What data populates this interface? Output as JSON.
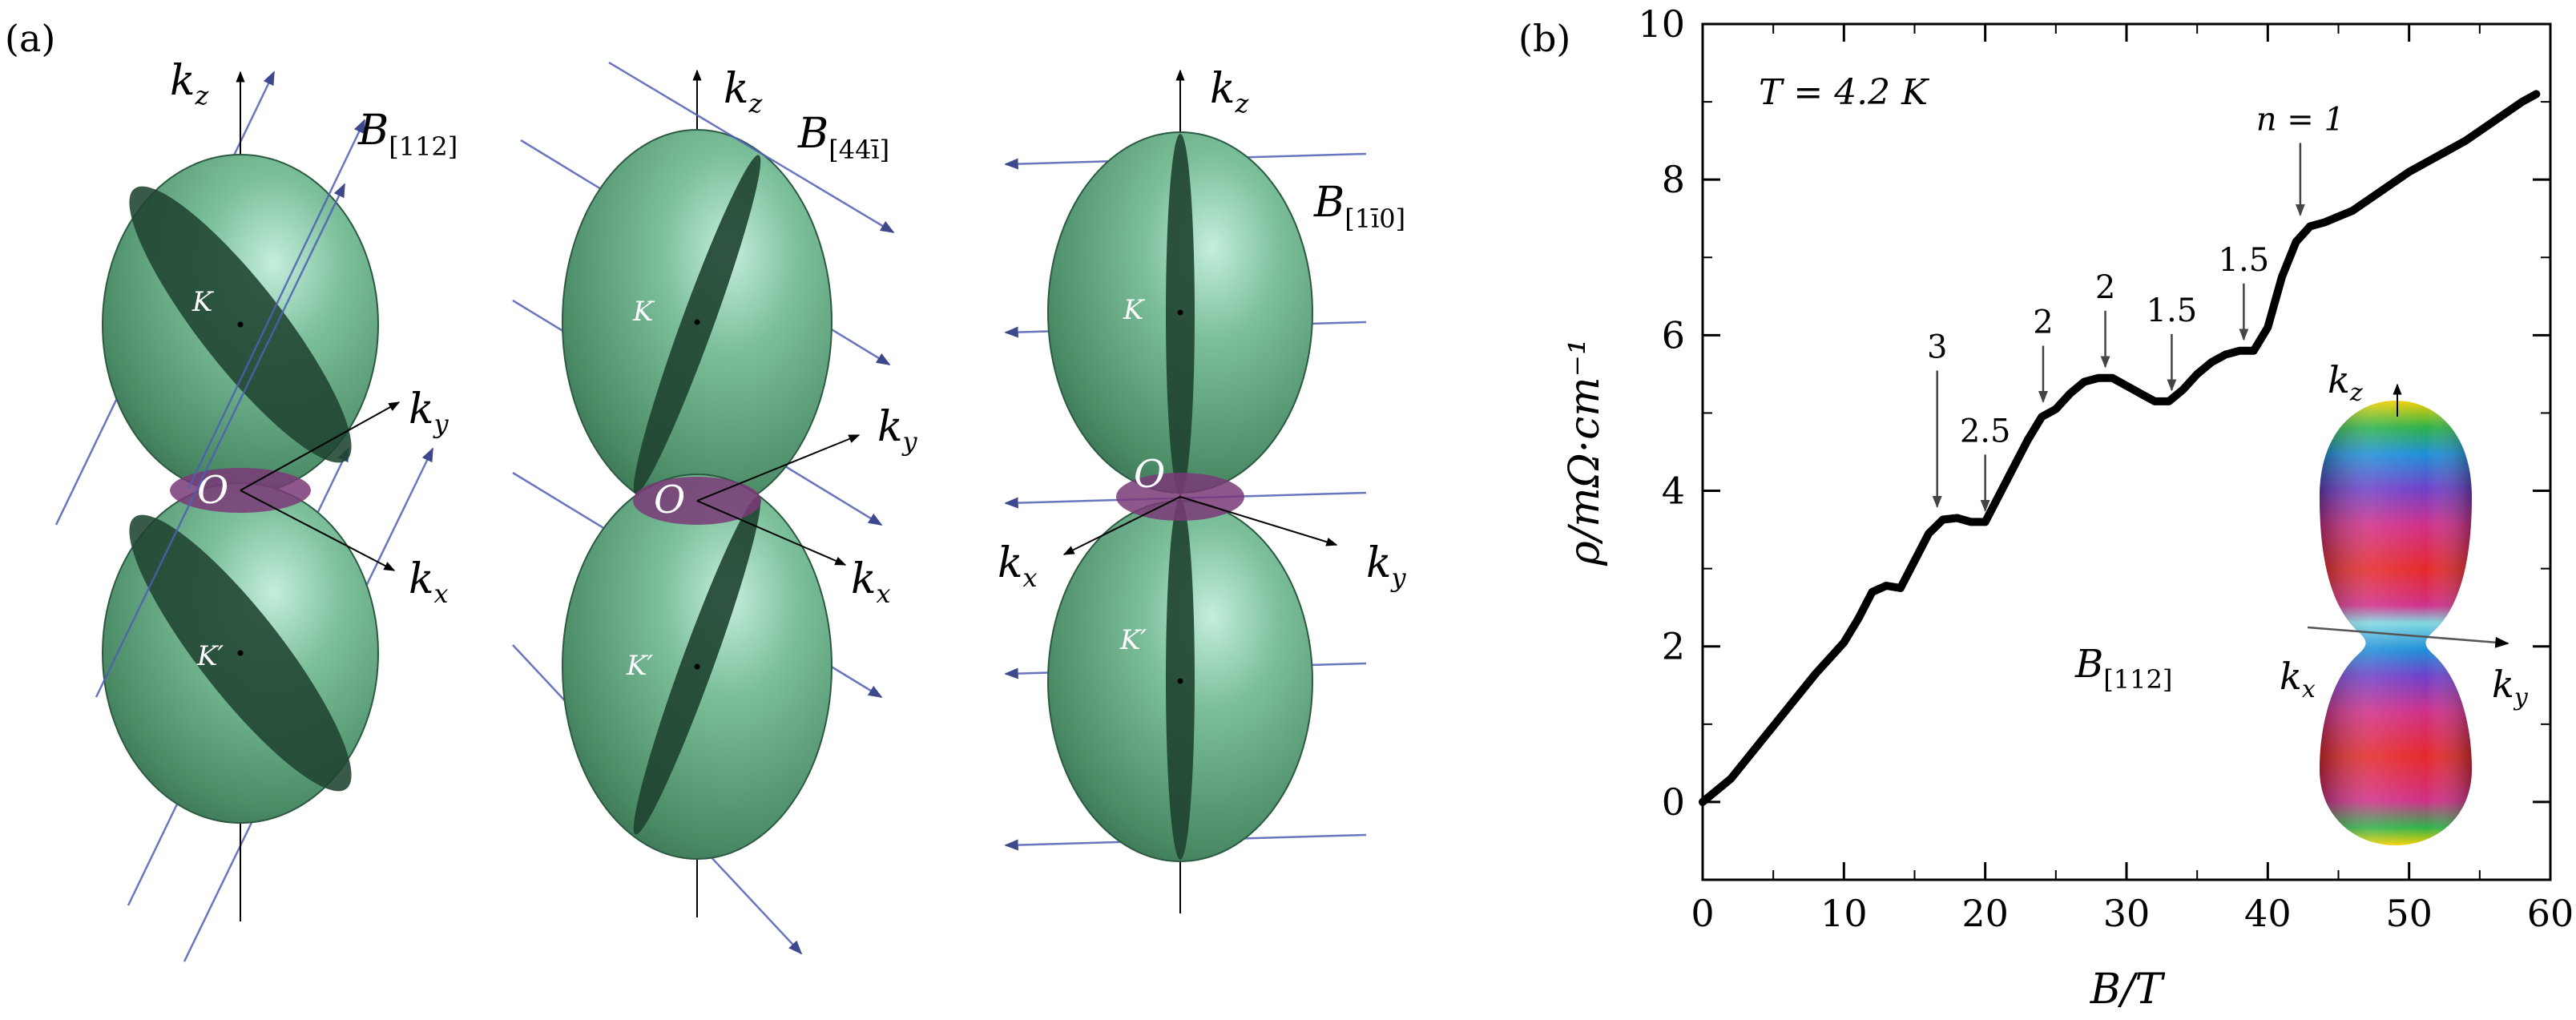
{
  "panel_a": {
    "label": "(a)",
    "kz": "k",
    "kz_sub": "z",
    "ky": "k",
    "ky_sub": "y",
    "kx": "k",
    "kx_sub": "x",
    "O": "O",
    "K": "K",
    "Kp": "K′",
    "field_1": "B",
    "field_1_sub": "[112]",
    "field_2": "B",
    "field_2_sub": "[44ī]",
    "field_3": "B",
    "field_3_sub": "[1ī0]"
  },
  "panel_b": {
    "label": "(b)",
    "temperature": "T = 4.2  K",
    "inset_field": "B",
    "inset_field_sub": "[112]",
    "inset_kz": "k",
    "inset_kz_sub": "z",
    "inset_kx": "k",
    "inset_kx_sub": "x",
    "inset_ky": "k",
    "inset_ky_sub": "y"
  },
  "chart_data": {
    "type": "line",
    "title": "",
    "xlabel": "B/T",
    "ylabel": "ρ/mΩ·cm⁻¹",
    "xlim": [
      0,
      60
    ],
    "ylim": [
      -1,
      10
    ],
    "xticks": [
      "0",
      "10",
      "20",
      "30",
      "40",
      "50",
      "60"
    ],
    "yticks": [
      "0",
      "2",
      "4",
      "6",
      "8",
      "10"
    ],
    "grid": false,
    "series": [
      {
        "x": [
          0,
          2,
          4,
          6,
          8,
          10,
          11,
          12,
          13,
          14,
          15,
          16,
          17,
          18,
          19,
          20,
          21,
          22,
          23,
          24,
          25,
          26,
          27,
          28,
          29,
          30,
          31,
          32,
          33,
          34,
          35,
          36,
          37,
          38,
          39,
          40,
          41,
          42,
          43,
          44,
          46,
          48,
          50,
          52,
          54,
          56,
          58,
          59
        ],
        "y": [
          0,
          0.3,
          0.75,
          1.2,
          1.65,
          2.05,
          2.35,
          2.7,
          2.78,
          2.75,
          3.1,
          3.45,
          3.63,
          3.65,
          3.6,
          3.6,
          3.95,
          4.3,
          4.65,
          4.95,
          5.05,
          5.25,
          5.4,
          5.45,
          5.45,
          5.35,
          5.25,
          5.15,
          5.15,
          5.3,
          5.5,
          5.65,
          5.75,
          5.8,
          5.8,
          6.1,
          6.75,
          7.2,
          7.4,
          7.45,
          7.6,
          7.85,
          8.1,
          8.3,
          8.5,
          8.75,
          9.0,
          9.1
        ]
      }
    ],
    "annotations": [
      {
        "text": "3",
        "x": 16.6,
        "y": 3.65
      },
      {
        "text": "2.5",
        "x": 20,
        "y": 3.6
      },
      {
        "text": "2",
        "x": 24.1,
        "y": 5.0
      },
      {
        "text": "2",
        "x": 28.5,
        "y": 5.45
      },
      {
        "text": "1.5",
        "x": 33.2,
        "y": 5.15
      },
      {
        "text": "1.5",
        "x": 38.3,
        "y": 5.8
      },
      {
        "text": "n = 1",
        "x": 42.3,
        "y": 7.4
      }
    ]
  },
  "colors": {
    "ellipsoid": "#5e9f7c",
    "ellipsoid_dark": "#1f4330",
    "cross_section": "#20402e",
    "neck": "#7a3a78",
    "field_line": "#4f5fb4",
    "axis": "#000000",
    "curve": "#000000"
  }
}
